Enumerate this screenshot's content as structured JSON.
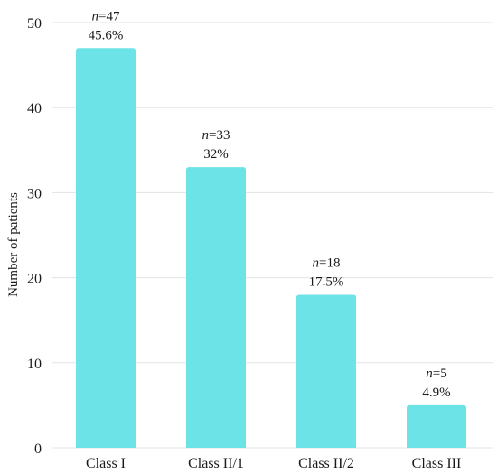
{
  "chart_data": {
    "type": "bar",
    "categories": [
      "Class I",
      "Class II/1",
      "Class II/2",
      "Class III"
    ],
    "values": [
      47,
      33,
      18,
      5
    ],
    "data_labels": [
      {
        "n": "47",
        "percent": "45.6%"
      },
      {
        "n": "33",
        "percent": "32%"
      },
      {
        "n": "18",
        "percent": "17.5%"
      },
      {
        "n": "5",
        "percent": "4.9%"
      }
    ],
    "n_prefix": "n",
    "title": "",
    "xlabel": "",
    "ylabel": "Number of patients",
    "ylim": [
      0,
      50
    ],
    "yticks": [
      0,
      10,
      20,
      30,
      40,
      50
    ],
    "grid": "horizontal",
    "legend": "none",
    "bar_color": "#6ce3e6",
    "grid_color": "#e3e3e3"
  }
}
